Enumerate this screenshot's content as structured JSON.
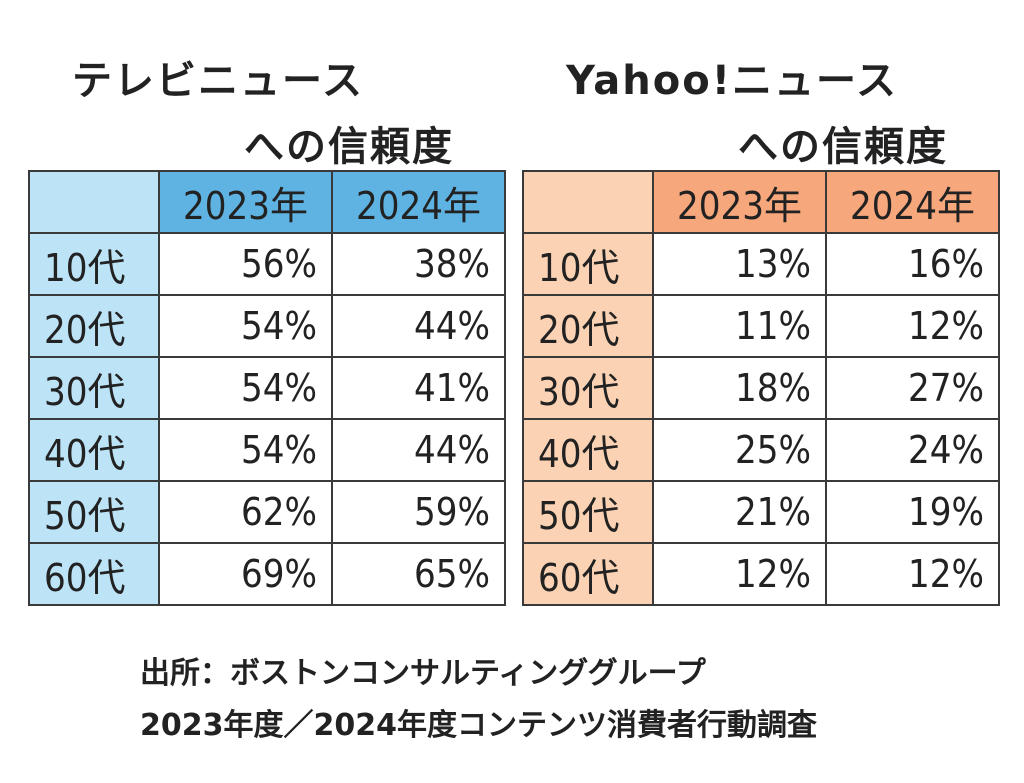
{
  "chart_data": [
    {
      "type": "table",
      "title_line1": "テレビニュース",
      "title_line2": "への信頼度",
      "columns": [
        "2023年",
        "2024年"
      ],
      "rows": [
        {
          "label": "10代",
          "values": [
            "56%",
            "38%"
          ]
        },
        {
          "label": "20代",
          "values": [
            "54%",
            "44%"
          ]
        },
        {
          "label": "30代",
          "values": [
            "54%",
            "41%"
          ]
        },
        {
          "label": "40代",
          "values": [
            "54%",
            "44%"
          ]
        },
        {
          "label": "50代",
          "values": [
            "62%",
            "59%"
          ]
        },
        {
          "label": "60代",
          "values": [
            "69%",
            "65%"
          ]
        }
      ],
      "colors": {
        "header": "#5fb3e2",
        "label_cells": "#bde3f7"
      }
    },
    {
      "type": "table",
      "title_line1": "Yahoo!ニュース",
      "title_line2": "への信頼度",
      "columns": [
        "2023年",
        "2024年"
      ],
      "rows": [
        {
          "label": "10代",
          "values": [
            "13%",
            "16%"
          ]
        },
        {
          "label": "20代",
          "values": [
            "11%",
            "12%"
          ]
        },
        {
          "label": "30代",
          "values": [
            "18%",
            "27%"
          ]
        },
        {
          "label": "40代",
          "values": [
            "25%",
            "24%"
          ]
        },
        {
          "label": "50代",
          "values": [
            "21%",
            "19%"
          ]
        },
        {
          "label": "60代",
          "values": [
            "12%",
            "12%"
          ]
        }
      ],
      "colors": {
        "header": "#f7a77c",
        "label_cells": "#fbd3b4"
      }
    }
  ],
  "source": {
    "line1": "出所：ボストンコンサルティンググループ",
    "line2": "2023年度／2024年度コンテンツ消費者行動調査"
  }
}
